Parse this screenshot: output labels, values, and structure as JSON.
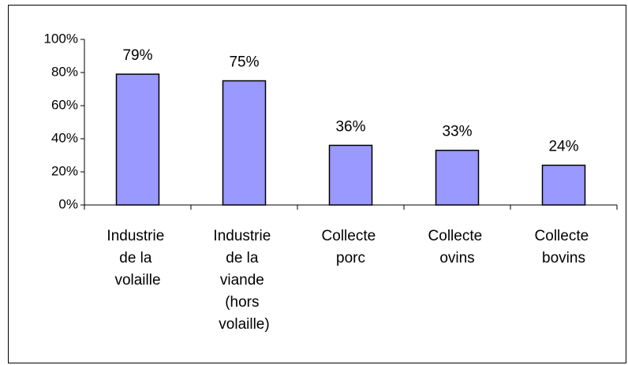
{
  "chart_data": {
    "type": "bar",
    "categories": [
      "Industrie de la volaille",
      "Industrie de la viande (hors volaille)",
      "Collecte porc",
      "Collecte ovins",
      "Collecte bovins"
    ],
    "values": [
      79,
      75,
      36,
      33,
      24
    ],
    "value_labels": [
      "79%",
      "75%",
      "36%",
      "33%",
      "24%"
    ],
    "color": "#9999ff",
    "ylim": [
      0,
      100
    ],
    "yticks": [
      {
        "value": 0,
        "label": "0%"
      },
      {
        "value": 20,
        "label": "20%"
      },
      {
        "value": 40,
        "label": "40%"
      },
      {
        "value": 60,
        "label": "60%"
      },
      {
        "value": 80,
        "label": "80%"
      },
      {
        "value": 100,
        "label": "100%"
      }
    ],
    "grid": false
  }
}
